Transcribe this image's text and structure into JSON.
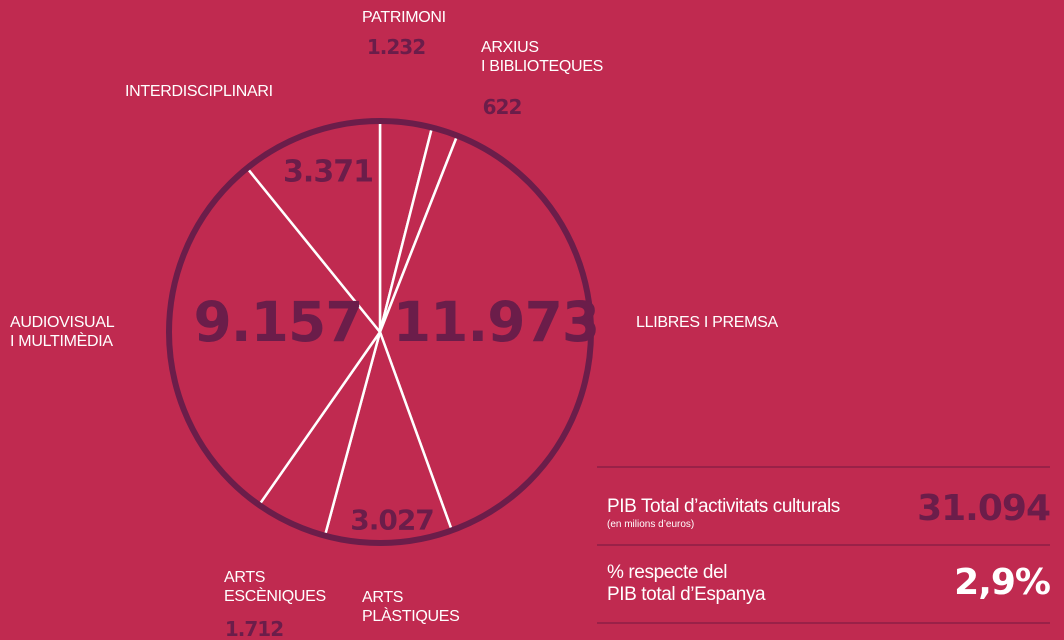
{
  "chart_data": {
    "type": "pie",
    "categories": [
      "PATRIMONI",
      "ARXIUS\nI BIBLIOTEQUES",
      "LLIBRES I PREMSA",
      "ARTS\nPLÀSTIQUES",
      "ARTS\nESCÈNIQUES",
      "AUDIOVISUAL\nI MULTIMÈDIA",
      "INTERDISCIPLINARI"
    ],
    "values": [
      1232,
      622,
      11973,
      3027,
      1712,
      9157,
      3371
    ],
    "value_labels": [
      "1.232",
      "622",
      "11.973",
      "3.027",
      "1.712",
      "9.157",
      "3.371"
    ],
    "color": "#c02a50",
    "edge_color": "#ffffff"
  },
  "summary": {
    "rows": [
      {
        "label": "PIB Total d’activitats culturals",
        "note": "(en milions d’euros)",
        "value": "31.094"
      },
      {
        "label": "% respecte del\nPIB total d’Espanya",
        "value": "2,9%"
      }
    ]
  }
}
